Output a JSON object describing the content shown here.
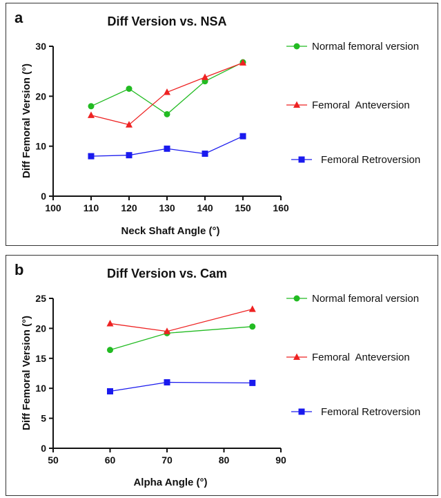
{
  "chart_data": [
    {
      "panel": "a",
      "type": "line",
      "title": "Diff Version vs. NSA",
      "xlabel": "Neck Shaft Angle (°)",
      "ylabel": "Diff Femoral  Version (°)",
      "xlim": [
        100,
        160
      ],
      "ylim": [
        0,
        30
      ],
      "xticks": [
        100,
        110,
        120,
        130,
        140,
        150,
        160
      ],
      "yticks": [
        0,
        10,
        20,
        30
      ],
      "grid": false,
      "legend_position": "right",
      "series": [
        {
          "name": "Normal femoral version",
          "marker": "circle",
          "color": "#22bb22",
          "x": [
            110,
            120,
            130,
            140,
            150
          ],
          "y": [
            18,
            21.5,
            16.4,
            23,
            26.8
          ]
        },
        {
          "name": "Femoral  Anteversion",
          "marker": "triangle",
          "color": "#ee2222",
          "x": [
            110,
            120,
            130,
            140,
            150
          ],
          "y": [
            16.2,
            14.3,
            20.8,
            23.8,
            26.7
          ]
        },
        {
          "name": "Femoral Retroversion",
          "marker": "square",
          "color": "#1a1aee",
          "x": [
            110,
            120,
            130,
            140,
            150
          ],
          "y": [
            8,
            8.2,
            9.5,
            8.5,
            12
          ]
        }
      ]
    },
    {
      "panel": "b",
      "type": "line",
      "title": "Diff Version vs. Cam",
      "xlabel": "Alpha Angle (°)",
      "ylabel": "Diff Femoral  Version (°)",
      "xlim": [
        50,
        90
      ],
      "ylim": [
        0,
        25
      ],
      "xticks": [
        50,
        60,
        70,
        80,
        90
      ],
      "yticks": [
        0,
        5,
        10,
        15,
        20,
        25
      ],
      "grid": false,
      "legend_position": "right",
      "series": [
        {
          "name": "Normal femoral version",
          "marker": "circle",
          "color": "#22bb22",
          "x": [
            60,
            70,
            85
          ],
          "y": [
            16.4,
            19.2,
            20.3
          ]
        },
        {
          "name": "Femoral  Anteversion",
          "marker": "triangle",
          "color": "#ee2222",
          "x": [
            60,
            70,
            85
          ],
          "y": [
            20.8,
            19.5,
            23.2
          ]
        },
        {
          "name": "Femoral Retroversion",
          "marker": "square",
          "color": "#1a1aee",
          "x": [
            60,
            70,
            85
          ],
          "y": [
            9.5,
            11,
            10.9
          ]
        }
      ]
    }
  ]
}
